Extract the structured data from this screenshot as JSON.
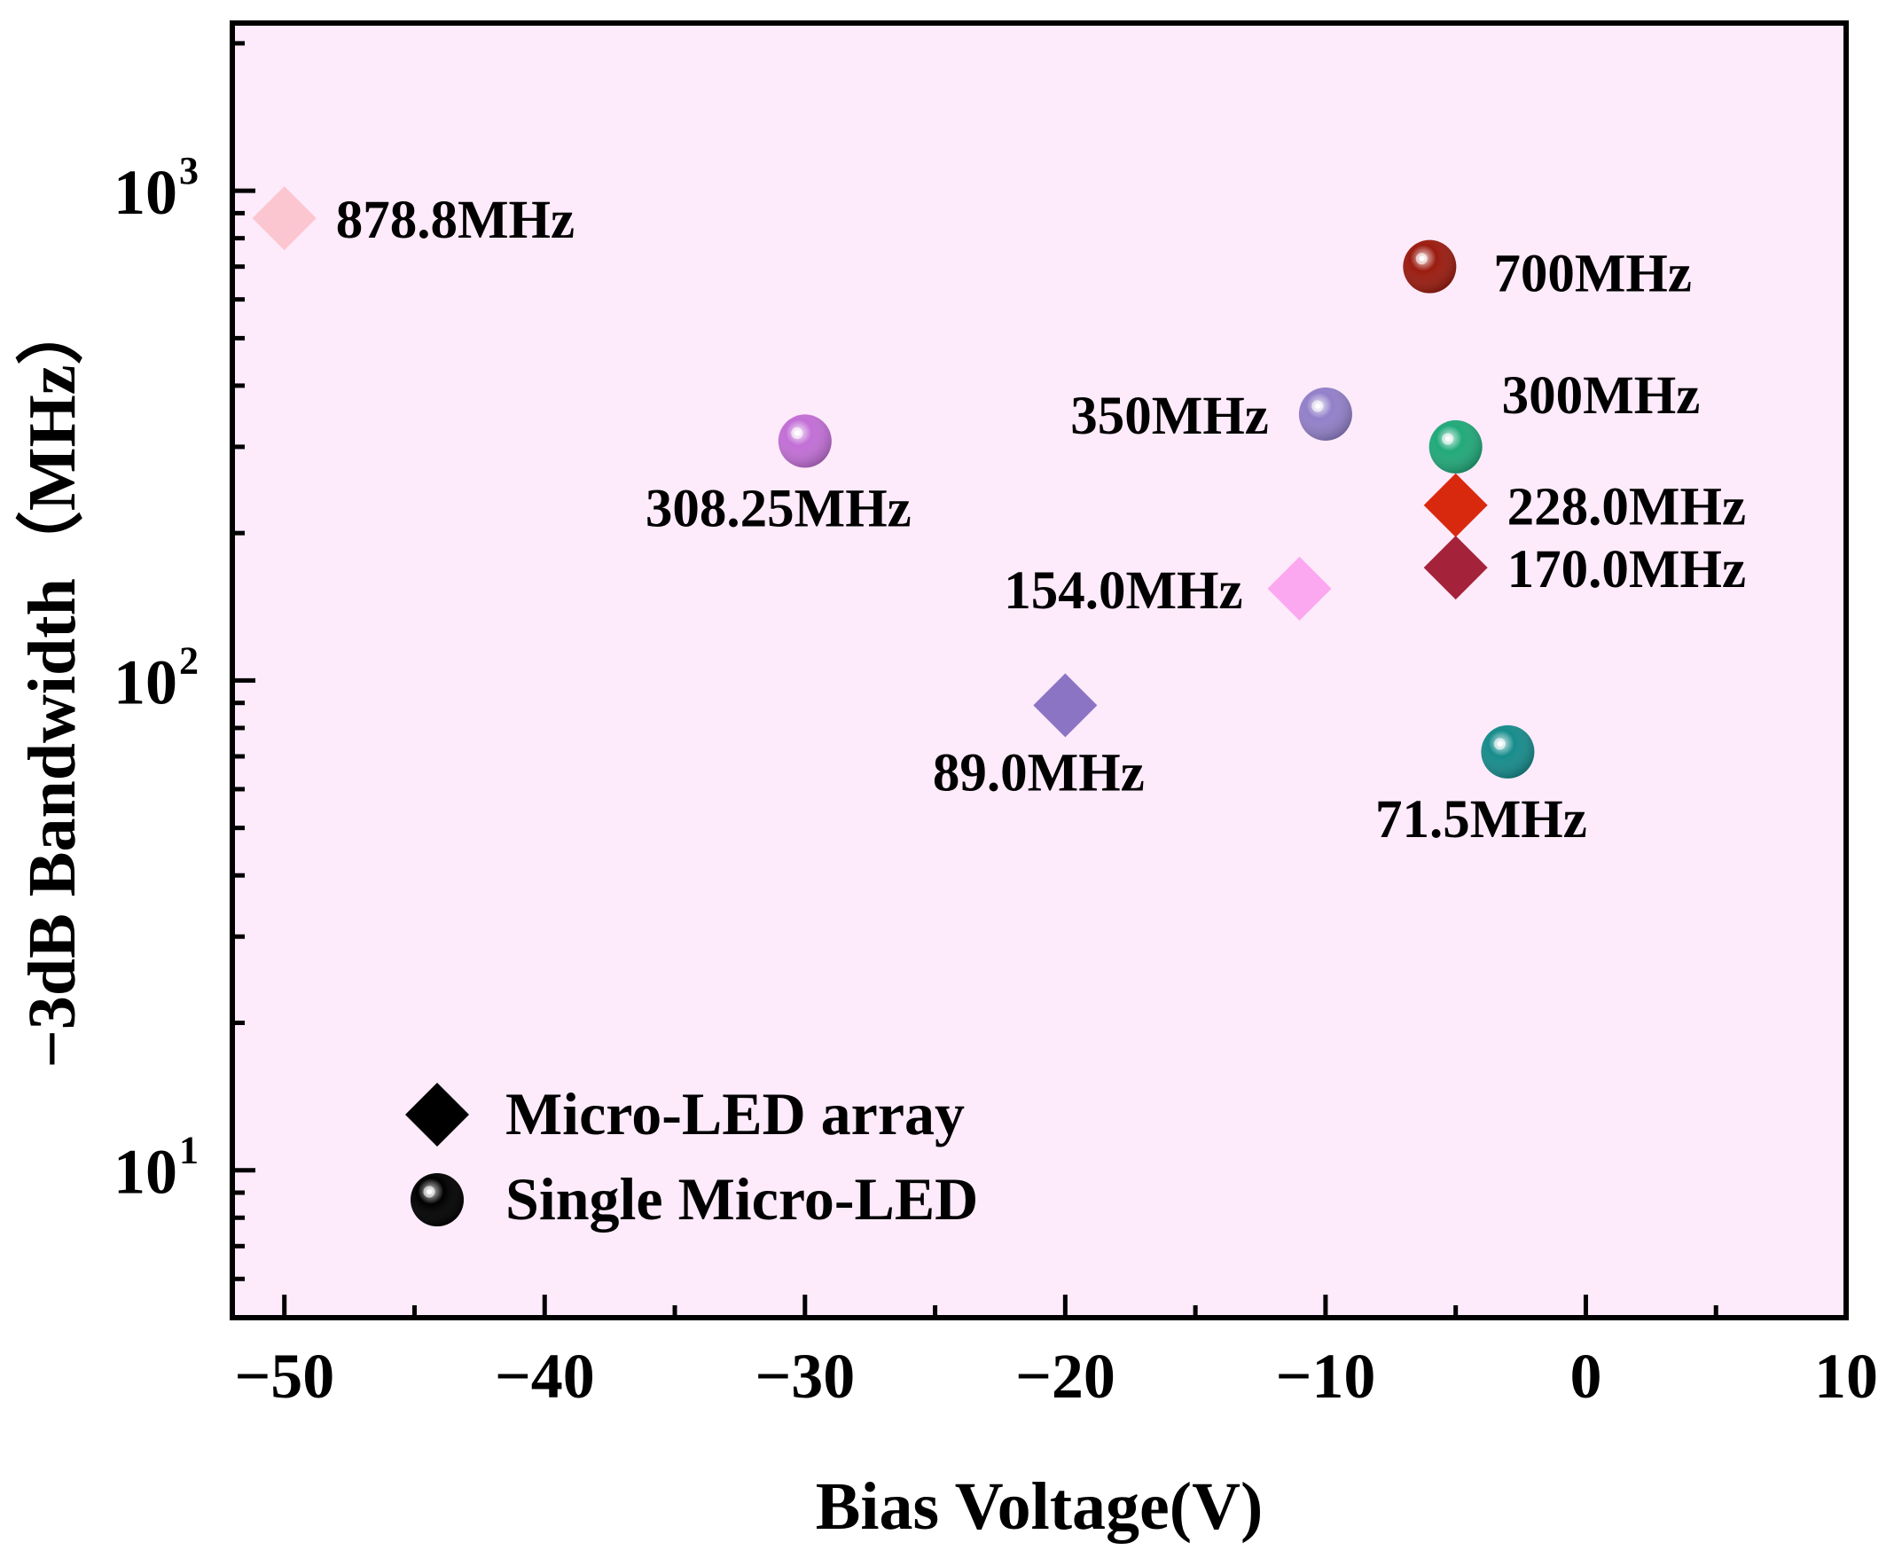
{
  "chart_data": {
    "type": "scatter",
    "title": "",
    "xlabel": "Bias Voltage(V)",
    "ylabel": "−3dB Bandwidth（MHz）",
    "xlim": [
      -52,
      10
    ],
    "ylim": [
      5,
      2200
    ],
    "yscale": "log",
    "xticks": [
      {
        "value": -50,
        "label": "−50"
      },
      {
        "value": -40,
        "label": "−40"
      },
      {
        "value": -30,
        "label": "−30"
      },
      {
        "value": -20,
        "label": "−20"
      },
      {
        "value": -10,
        "label": "−10"
      },
      {
        "value": 0,
        "label": "0"
      },
      {
        "value": 10,
        "label": "10"
      }
    ],
    "yticks": [
      {
        "value": 10,
        "base": "10",
        "exp": "1"
      },
      {
        "value": 100,
        "base": "10",
        "exp": "2"
      },
      {
        "value": 1000,
        "base": "10",
        "exp": "3"
      }
    ],
    "background": "#fdeafa",
    "points": [
      {
        "x": -50,
        "y": 878.8,
        "marker": "diamond",
        "color": "#fbc6cf",
        "label": "878.8MHz",
        "label_pos": "right"
      },
      {
        "x": -30,
        "y": 308.25,
        "marker": "sphere",
        "color": "#c26fd6",
        "label": "308.25MHz",
        "label_pos": "below"
      },
      {
        "x": -20,
        "y": 89.0,
        "marker": "diamond",
        "color": "#8b74c3",
        "label": "89.0MHz",
        "label_pos": "below"
      },
      {
        "x": -11,
        "y": 154.0,
        "marker": "diamond",
        "color": "#fba8f0",
        "label": "154.0MHz",
        "label_pos": "left"
      },
      {
        "x": -10,
        "y": 350,
        "marker": "sphere",
        "color": "#9280c9",
        "label": "350MHz",
        "label_pos": "left"
      },
      {
        "x": -6,
        "y": 700,
        "marker": "sphere",
        "color": "#9b1c10",
        "label": "700MHz",
        "label_pos": "right-below"
      },
      {
        "x": -5,
        "y": 300,
        "marker": "sphere",
        "color": "#21a97a",
        "label": "300MHz",
        "label_pos": "above-right"
      },
      {
        "x": -5,
        "y": 228.0,
        "marker": "diamond",
        "color": "#d8290f",
        "label": "228.0MHz",
        "label_pos": "right"
      },
      {
        "x": -5,
        "y": 170.0,
        "marker": "diamond",
        "color": "#a5233a",
        "label": "170.0MHz",
        "label_pos": "right"
      },
      {
        "x": -3,
        "y": 71.5,
        "marker": "sphere",
        "color": "#178c8c",
        "label": "71.5MHz",
        "label_pos": "below"
      }
    ],
    "legend": {
      "position": "bottom-left",
      "entries": [
        {
          "marker": "diamond",
          "color": "#000000",
          "label": "Micro-LED array"
        },
        {
          "marker": "sphere",
          "color": "#000000",
          "label": "Single Micro-LED"
        }
      ]
    }
  }
}
